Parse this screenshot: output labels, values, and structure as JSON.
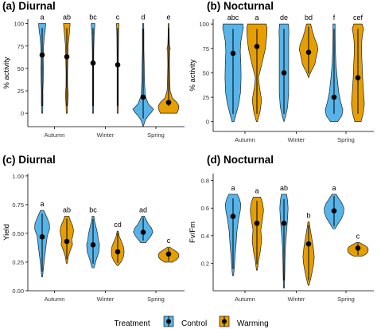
{
  "colors": {
    "control": "#56B4E9",
    "warming": "#E69F00"
  },
  "legend": {
    "title": "Treatment",
    "items": [
      {
        "label": "Control",
        "color": "#56B4E9"
      },
      {
        "label": "Warming",
        "color": "#E69F00"
      }
    ],
    "placement": "bottom"
  },
  "chart_data": [
    {
      "type": "violin",
      "title": "(a) Diurnal",
      "xlabel": "",
      "ylabel": "% activity",
      "categories": [
        "Autumn",
        "Winter",
        "Spring"
      ],
      "ylim": [
        -15,
        105
      ],
      "yticks": [
        "0",
        "25",
        "50",
        "75",
        "100"
      ],
      "grid": false,
      "series": [
        {
          "name": "Control",
          "values": [
            65,
            56,
            18
          ],
          "ranges": [
            [
              0,
              100
            ],
            [
              0,
              100
            ],
            [
              -15,
              100
            ]
          ],
          "letters": [
            "a",
            "bc",
            "d"
          ]
        },
        {
          "name": "Warming",
          "values": [
            63,
            54,
            12
          ],
          "ranges": [
            [
              0,
              100
            ],
            [
              0,
              100
            ],
            [
              0,
              100
            ]
          ],
          "letters": [
            "ab",
            "c",
            "e"
          ]
        }
      ]
    },
    {
      "type": "violin",
      "title": "(b) Nocturnal",
      "xlabel": "",
      "ylabel": "% activity",
      "categories": [
        "Autumn",
        "Winter",
        "Spring"
      ],
      "ylim": [
        -10,
        105
      ],
      "yticks": [
        "0",
        "25",
        "50",
        "75",
        "100"
      ],
      "grid": false,
      "series": [
        {
          "name": "Control",
          "values": [
            70,
            50,
            25
          ],
          "ranges": [
            [
              0,
              100
            ],
            [
              0,
              100
            ],
            [
              0,
              100
            ]
          ],
          "letters": [
            "abc",
            "de",
            "f"
          ]
        },
        {
          "name": "Warming",
          "values": [
            77,
            71,
            45
          ],
          "ranges": [
            [
              0,
              100
            ],
            [
              45,
              100
            ],
            [
              0,
              100
            ]
          ],
          "letters": [
            "a",
            "bd",
            "cef"
          ]
        }
      ]
    },
    {
      "type": "violin",
      "title": "(c) Diurnal",
      "xlabel": "",
      "ylabel": "Yield",
      "categories": [
        "Autumn",
        "Winter",
        "Spring"
      ],
      "ylim": [
        0,
        1.02
      ],
      "yticks": [
        "0.00",
        "0.25",
        "0.50",
        "0.75",
        "1.00"
      ],
      "grid": false,
      "series": [
        {
          "name": "Control",
          "values": [
            0.47,
            0.4,
            0.51
          ],
          "ranges": [
            [
              0.12,
              0.7
            ],
            [
              0.2,
              0.65
            ],
            [
              0.42,
              0.65
            ]
          ],
          "letters": [
            "a",
            "bc",
            "ad"
          ]
        },
        {
          "name": "Warming",
          "values": [
            0.43,
            0.34,
            0.32
          ],
          "ranges": [
            [
              0.24,
              0.65
            ],
            [
              0.22,
              0.52
            ],
            [
              0.25,
              0.38
            ]
          ],
          "letters": [
            "ab",
            "cd",
            "c"
          ]
        }
      ]
    },
    {
      "type": "violin",
      "title": "(d) Nocturnal",
      "xlabel": "",
      "ylabel": "Fv/Fm",
      "categories": [
        "Autumn",
        "Winter",
        "Spring"
      ],
      "ylim": [
        0,
        0.85
      ],
      "yticks": [
        "0.2",
        "0.4",
        "0.6",
        "0.8"
      ],
      "grid": false,
      "series": [
        {
          "name": "Control",
          "values": [
            0.54,
            0.49,
            0.58
          ],
          "ranges": [
            [
              0.11,
              0.7
            ],
            [
              0.02,
              0.7
            ],
            [
              0.45,
              0.7
            ]
          ],
          "letters": [
            "a",
            "ab",
            "a"
          ]
        },
        {
          "name": "Warming",
          "values": [
            0.49,
            0.34,
            0.31
          ],
          "ranges": [
            [
              0.15,
              0.68
            ],
            [
              0.04,
              0.5
            ],
            [
              0.25,
              0.35
            ]
          ],
          "letters": [
            "a",
            "b",
            "c"
          ]
        }
      ]
    }
  ]
}
